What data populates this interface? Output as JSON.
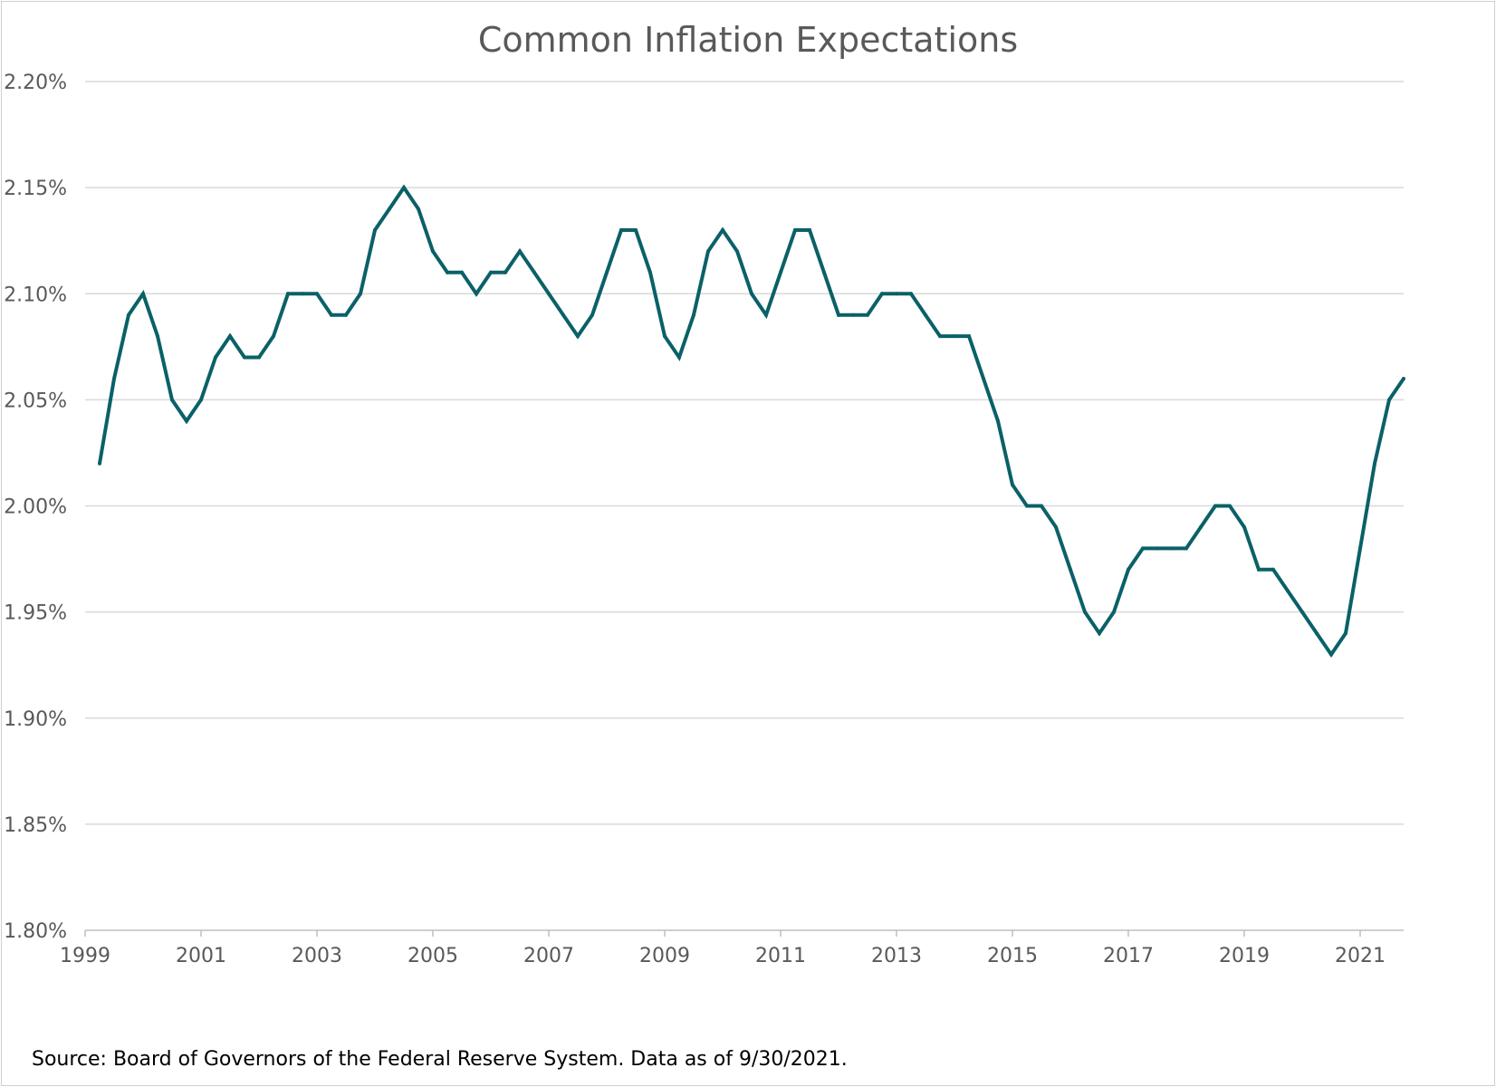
{
  "source_note": "Source: Board of Governors of the Federal Reserve System. Data as of 9/30/2021.",
  "colors": {
    "line": "#0a6167",
    "grid": "#d9d9d9",
    "axis": "#bfbfbf",
    "text": "#595959"
  },
  "chart_data": {
    "type": "line",
    "title": "Common Inflation Expectations",
    "xlabel": "",
    "ylabel": "",
    "grid": true,
    "legend": false,
    "x_range": [
      1999.0,
      2021.75
    ],
    "y_range": [
      1.8,
      2.2
    ],
    "x_ticks": [
      {
        "value": 1999,
        "label": "1999"
      },
      {
        "value": 2001,
        "label": "2001"
      },
      {
        "value": 2003,
        "label": "2003"
      },
      {
        "value": 2005,
        "label": "2005"
      },
      {
        "value": 2007,
        "label": "2007"
      },
      {
        "value": 2009,
        "label": "2009"
      },
      {
        "value": 2011,
        "label": "2011"
      },
      {
        "value": 2013,
        "label": "2013"
      },
      {
        "value": 2015,
        "label": "2015"
      },
      {
        "value": 2017,
        "label": "2017"
      },
      {
        "value": 2019,
        "label": "2019"
      },
      {
        "value": 2021,
        "label": "2021"
      }
    ],
    "y_ticks": [
      {
        "value": 1.8,
        "label": "1.80%"
      },
      {
        "value": 1.85,
        "label": "1.85%"
      },
      {
        "value": 1.9,
        "label": "1.90%"
      },
      {
        "value": 1.95,
        "label": "1.95%"
      },
      {
        "value": 2.0,
        "label": "2.00%"
      },
      {
        "value": 2.05,
        "label": "2.05%"
      },
      {
        "value": 2.1,
        "label": "2.10%"
      },
      {
        "value": 2.15,
        "label": "2.15%"
      },
      {
        "value": 2.2,
        "label": "2.20%"
      }
    ],
    "series": [
      {
        "x": [
          1999.25,
          1999.5,
          1999.75,
          2000.0,
          2000.25,
          2000.5,
          2000.75,
          2001.0,
          2001.25,
          2001.5,
          2001.75,
          2002.0,
          2002.25,
          2002.5,
          2002.75,
          2003.0,
          2003.25,
          2003.5,
          2003.75,
          2004.0,
          2004.25,
          2004.5,
          2004.75,
          2005.0,
          2005.25,
          2005.5,
          2005.75,
          2006.0,
          2006.25,
          2006.5,
          2006.75,
          2007.0,
          2007.25,
          2007.5,
          2007.75,
          2008.0,
          2008.25,
          2008.5,
          2008.75,
          2009.0,
          2009.25,
          2009.5,
          2009.75,
          2010.0,
          2010.25,
          2010.5,
          2010.75,
          2011.0,
          2011.25,
          2011.5,
          2011.75,
          2012.0,
          2012.25,
          2012.5,
          2012.75,
          2013.0,
          2013.25,
          2013.5,
          2013.75,
          2014.0,
          2014.25,
          2014.5,
          2014.75,
          2015.0,
          2015.25,
          2015.5,
          2015.75,
          2016.0,
          2016.25,
          2016.5,
          2016.75,
          2017.0,
          2017.25,
          2017.5,
          2017.75,
          2018.0,
          2018.25,
          2018.5,
          2018.75,
          2019.0,
          2019.25,
          2019.5,
          2019.75,
          2020.0,
          2020.25,
          2020.5,
          2020.75,
          2021.0,
          2021.25,
          2021.5,
          2021.75
        ],
        "values": [
          2.02,
          2.06,
          2.09,
          2.1,
          2.08,
          2.05,
          2.04,
          2.05,
          2.07,
          2.08,
          2.07,
          2.07,
          2.08,
          2.1,
          2.1,
          2.1,
          2.09,
          2.09,
          2.1,
          2.13,
          2.14,
          2.15,
          2.14,
          2.12,
          2.11,
          2.11,
          2.1,
          2.11,
          2.11,
          2.12,
          2.11,
          2.1,
          2.09,
          2.08,
          2.09,
          2.11,
          2.13,
          2.13,
          2.11,
          2.08,
          2.07,
          2.09,
          2.12,
          2.13,
          2.12,
          2.1,
          2.09,
          2.11,
          2.13,
          2.13,
          2.11,
          2.09,
          2.09,
          2.09,
          2.1,
          2.1,
          2.1,
          2.09,
          2.08,
          2.08,
          2.08,
          2.06,
          2.04,
          2.01,
          2.0,
          2.0,
          1.99,
          1.97,
          1.95,
          1.94,
          1.95,
          1.97,
          1.98,
          1.98,
          1.98,
          1.98,
          1.99,
          2.0,
          2.0,
          1.99,
          1.97,
          1.97,
          1.96,
          1.95,
          1.94,
          1.93,
          1.94,
          1.98,
          2.02,
          2.05,
          2.06
        ]
      }
    ]
  }
}
